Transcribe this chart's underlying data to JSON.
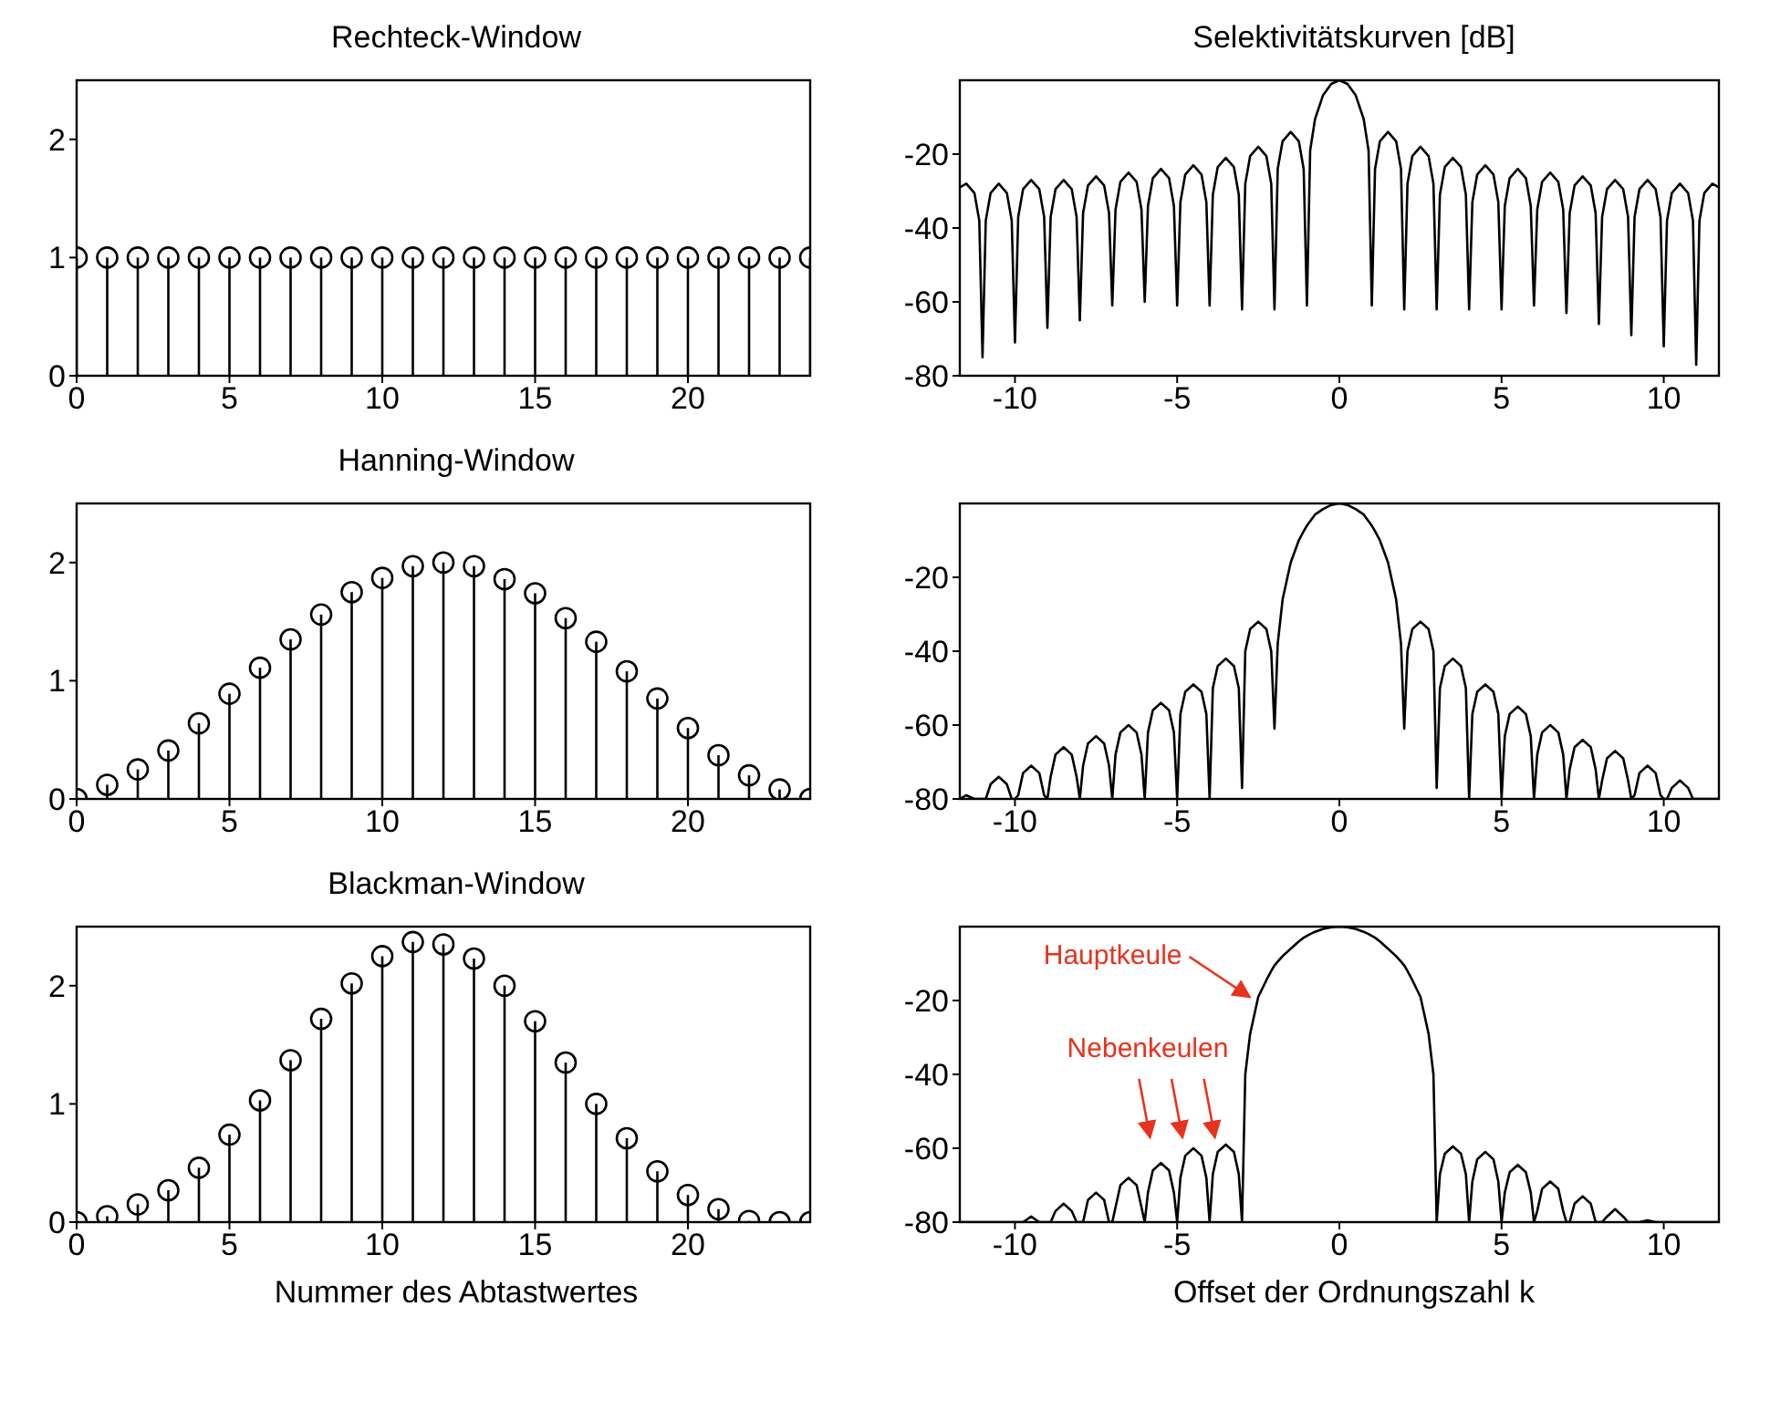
{
  "chart_data": [
    {
      "type": "lollipop",
      "title": "Rechteck-Window",
      "x": [
        0,
        1,
        2,
        3,
        4,
        5,
        6,
        7,
        8,
        9,
        10,
        11,
        12,
        13,
        14,
        15,
        16,
        17,
        18,
        19,
        20,
        21,
        22,
        23,
        24
      ],
      "values": [
        1,
        1,
        1,
        1,
        1,
        1,
        1,
        1,
        1,
        1,
        1,
        1,
        1,
        1,
        1,
        1,
        1,
        1,
        1,
        1,
        1,
        1,
        1,
        1,
        1
      ],
      "color": "#000000",
      "marker": "circle",
      "xlim": [
        0,
        24
      ],
      "ylim": [
        0,
        2.5
      ],
      "xticks": [
        0,
        5,
        10,
        15,
        20
      ],
      "yticks": [
        0,
        1,
        2
      ]
    },
    {
      "type": "line",
      "title": "Selektivitätskurven [dB]",
      "x": [
        -11.7,
        -11.5,
        -11.25,
        -11.1,
        -11,
        -10.9,
        -10.75,
        -10.5,
        -10.25,
        -10.1,
        -10,
        -9.9,
        -9.75,
        -9.5,
        -9.25,
        -9.1,
        -9,
        -8.9,
        -8.75,
        -8.5,
        -8.25,
        -8.1,
        -8,
        -7.9,
        -7.75,
        -7.5,
        -7.25,
        -7.1,
        -7,
        -6.9,
        -6.75,
        -6.5,
        -6.25,
        -6.1,
        -6,
        -5.9,
        -5.75,
        -5.5,
        -5.25,
        -5.1,
        -5,
        -4.9,
        -4.75,
        -4.5,
        -4.25,
        -4.1,
        -4,
        -3.9,
        -3.75,
        -3.5,
        -3.25,
        -3.1,
        -3,
        -2.9,
        -2.75,
        -2.5,
        -2.25,
        -2.1,
        -2,
        -1.9,
        -1.75,
        -1.5,
        -1.25,
        -1.1,
        -1,
        -0.9,
        -0.75,
        -0.5,
        -0.25,
        0,
        0.25,
        0.5,
        0.75,
        0.9,
        1,
        1.1,
        1.25,
        1.5,
        1.75,
        1.9,
        2,
        2.1,
        2.25,
        2.5,
        2.75,
        2.9,
        3,
        3.1,
        3.25,
        3.5,
        3.75,
        3.9,
        4,
        4.1,
        4.25,
        4.5,
        4.75,
        4.9,
        5,
        5.1,
        5.25,
        5.5,
        5.75,
        5.9,
        6,
        6.1,
        6.25,
        6.5,
        6.75,
        6.9,
        7,
        7.1,
        7.25,
        7.5,
        7.75,
        7.9,
        8,
        8.1,
        8.25,
        8.5,
        8.75,
        8.9,
        9,
        9.1,
        9.25,
        9.5,
        9.75,
        9.9,
        10,
        10.1,
        10.25,
        10.5,
        10.75,
        10.9,
        11,
        11.1,
        11.25,
        11.5,
        11.7
      ],
      "values": [
        -29,
        -28,
        -30.5,
        -38,
        -75,
        -38,
        -30.5,
        -28,
        -30.5,
        -38,
        -71,
        -37,
        -29.5,
        -27,
        -29.5,
        -37,
        -67,
        -37,
        -29.5,
        -27,
        -29.5,
        -37,
        -65,
        -36,
        -28.5,
        -26,
        -28.5,
        -36,
        -61,
        -35,
        -27.5,
        -25,
        -27.5,
        -35,
        -60,
        -34,
        -26.5,
        -24,
        -26.5,
        -34,
        -61,
        -33,
        -25.5,
        -23,
        -25.5,
        -33,
        -61,
        -31,
        -23.5,
        -21,
        -23.5,
        -31,
        -62,
        -28,
        -20.5,
        -18,
        -20.5,
        -28,
        -62,
        -24,
        -16.5,
        -14,
        -16.5,
        -24,
        -61,
        -19,
        -10.5,
        -4,
        -1,
        0,
        -1,
        -4,
        -10.5,
        -19,
        -61,
        -24,
        -16.5,
        -14,
        -16.5,
        -24,
        -62,
        -28,
        -20.5,
        -18,
        -20.5,
        -28,
        -62,
        -31,
        -23.5,
        -21,
        -23.5,
        -31,
        -62,
        -33,
        -25.5,
        -23,
        -25.5,
        -33,
        -62,
        -34,
        -26.5,
        -24,
        -26.5,
        -34,
        -61,
        -35,
        -27.5,
        -25,
        -27.5,
        -35,
        -63,
        -36,
        -28.5,
        -26,
        -28.5,
        -36,
        -66,
        -37,
        -29.5,
        -27,
        -29.5,
        -37,
        -69,
        -37,
        -29.5,
        -27,
        -29.5,
        -37,
        -72,
        -38,
        -30.5,
        -28,
        -30.5,
        -38,
        -77,
        -38,
        -30.5,
        -28,
        -29
      ],
      "color": "#000000",
      "xlim": [
        -11.7,
        11.7
      ],
      "ylim": [
        -80,
        0
      ],
      "xticks": [
        -10,
        -5,
        0,
        5,
        10
      ],
      "yticks": [
        -20,
        -40,
        -60,
        -80
      ]
    },
    {
      "type": "lollipop",
      "title": "Hanning-Window",
      "x": [
        0,
        1,
        2,
        3,
        4,
        5,
        6,
        7,
        8,
        9,
        10,
        11,
        12,
        13,
        14,
        15,
        16,
        17,
        18,
        19,
        20,
        21,
        22,
        23,
        24
      ],
      "values": [
        0,
        0.12,
        0.25,
        0.41,
        0.64,
        0.89,
        1.11,
        1.35,
        1.56,
        1.75,
        1.87,
        1.97,
        2,
        1.97,
        1.86,
        1.74,
        1.53,
        1.33,
        1.08,
        0.85,
        0.6,
        0.37,
        0.2,
        0.08,
        0
      ],
      "color": "#000000",
      "marker": "circle",
      "xlim": [
        0,
        24
      ],
      "ylim": [
        0,
        2.5
      ],
      "xticks": [
        0,
        5,
        10,
        15,
        20
      ],
      "yticks": [
        0,
        1,
        2
      ]
    },
    {
      "type": "line",
      "x": [
        -11.7,
        -11.5,
        -11.25,
        -11.1,
        -11,
        -10.9,
        -10.75,
        -10.5,
        -10.25,
        -10.1,
        -10,
        -9.9,
        -9.75,
        -9.5,
        -9.25,
        -9.1,
        -9,
        -8.9,
        -8.75,
        -8.5,
        -8.25,
        -8.1,
        -8,
        -7.9,
        -7.75,
        -7.5,
        -7.25,
        -7.1,
        -7,
        -6.9,
        -6.75,
        -6.5,
        -6.25,
        -6.1,
        -6,
        -5.9,
        -5.75,
        -5.5,
        -5.25,
        -5.1,
        -5,
        -4.9,
        -4.75,
        -4.5,
        -4.25,
        -4.1,
        -4,
        -3.9,
        -3.75,
        -3.5,
        -3.25,
        -3.1,
        -3,
        -2.9,
        -2.75,
        -2.5,
        -2.25,
        -2.1,
        -2,
        -1.9,
        -1.75,
        -1.5,
        -1.25,
        -1.1,
        -1,
        -0.9,
        -0.75,
        -0.5,
        -0.25,
        0,
        0.25,
        0.5,
        0.75,
        0.9,
        1,
        1.1,
        1.25,
        1.5,
        1.75,
        1.9,
        2,
        2.1,
        2.25,
        2.5,
        2.75,
        2.9,
        3,
        3.1,
        3.25,
        3.5,
        3.75,
        3.9,
        4,
        4.1,
        4.25,
        4.5,
        4.75,
        4.9,
        5,
        5.1,
        5.25,
        5.5,
        5.75,
        5.9,
        6,
        6.1,
        6.25,
        6.5,
        6.75,
        6.9,
        7,
        7.1,
        7.25,
        7.5,
        7.75,
        7.9,
        8,
        8.1,
        8.25,
        8.5,
        8.75,
        8.9,
        9,
        9.1,
        9.25,
        9.5,
        9.75,
        9.9,
        10,
        10.1,
        10.25,
        10.5,
        10.75,
        10.9,
        11,
        11.1,
        11.25,
        11.5,
        11.7
      ],
      "values": [
        -80,
        -79,
        -80,
        -80,
        -80,
        -80,
        -76,
        -74,
        -76,
        -80,
        -80,
        -79,
        -73,
        -71,
        -73,
        -79,
        -80,
        -74,
        -68,
        -66,
        -68,
        -74,
        -80,
        -71,
        -65,
        -63,
        -65,
        -71,
        -80,
        -68,
        -62,
        -60,
        -62,
        -68,
        -80,
        -62,
        -56,
        -54,
        -56,
        -62,
        -80,
        -57,
        -51,
        -49,
        -51,
        -57,
        -80,
        -50,
        -44,
        -42,
        -44,
        -50,
        -77,
        -40,
        -34,
        -32,
        -34,
        -40,
        -61,
        -38,
        -26,
        -16,
        -10,
        -7.5,
        -6,
        -4.8,
        -3,
        -1.5,
        -0.4,
        0,
        -0.4,
        -1.5,
        -3,
        -4.8,
        -6,
        -7.5,
        -10,
        -16,
        -26,
        -38,
        -61,
        -40,
        -34,
        -32,
        -34,
        -40,
        -77,
        -50,
        -44,
        -42,
        -44,
        -50,
        -80,
        -57,
        -51,
        -49,
        -51,
        -57,
        -80,
        -63,
        -57,
        -55,
        -57,
        -63,
        -80,
        -68,
        -62,
        -60,
        -62,
        -68,
        -80,
        -72,
        -66,
        -64,
        -66,
        -72,
        -80,
        -75,
        -69,
        -67,
        -69,
        -75,
        -80,
        -79,
        -73,
        -71,
        -73,
        -79,
        -80,
        -80,
        -77,
        -75,
        -77,
        -80,
        -80,
        -80,
        -80,
        -80,
        -80
      ],
      "color": "#000000",
      "xlim": [
        -11.7,
        11.7
      ],
      "ylim": [
        -80,
        0
      ],
      "xticks": [
        -10,
        -5,
        0,
        5,
        10
      ],
      "yticks": [
        -20,
        -40,
        -60,
        -80
      ]
    },
    {
      "type": "lollipop",
      "title": "Blackman-Window",
      "xlabel": "Nummer des Abtastwertes",
      "x": [
        0,
        1,
        2,
        3,
        4,
        5,
        6,
        7,
        8,
        9,
        10,
        11,
        12,
        13,
        14,
        15,
        16,
        17,
        18,
        19,
        20,
        21,
        22,
        23,
        24
      ],
      "values": [
        0,
        0.05,
        0.15,
        0.27,
        0.46,
        0.74,
        1.03,
        1.37,
        1.72,
        2.02,
        2.25,
        2.37,
        2.35,
        2.23,
        2,
        1.7,
        1.35,
        1,
        0.71,
        0.43,
        0.23,
        0.11,
        0.01,
        0,
        0
      ],
      "color": "#000000",
      "marker": "circle",
      "xlim": [
        0,
        24
      ],
      "ylim": [
        0,
        2.5
      ],
      "xticks": [
        0,
        5,
        10,
        15,
        20
      ],
      "yticks": [
        0,
        1,
        2
      ]
    },
    {
      "type": "line",
      "xlabel": "Offset der Ordnungszahl k",
      "x": [
        -11.7,
        -11.5,
        -11.25,
        -11.1,
        -11,
        -10.9,
        -10.75,
        -10.5,
        -10.25,
        -10.1,
        -10,
        -9.9,
        -9.75,
        -9.5,
        -9.25,
        -9.1,
        -9,
        -8.9,
        -8.75,
        -8.5,
        -8.25,
        -8.1,
        -8,
        -7.9,
        -7.75,
        -7.5,
        -7.25,
        -7.1,
        -7,
        -6.9,
        -6.75,
        -6.5,
        -6.25,
        -6.1,
        -6,
        -5.9,
        -5.75,
        -5.5,
        -5.25,
        -5.1,
        -5,
        -4.9,
        -4.75,
        -4.5,
        -4.25,
        -4.1,
        -4,
        -3.9,
        -3.75,
        -3.5,
        -3.25,
        -3.1,
        -3,
        -2.9,
        -2.75,
        -2.5,
        -2.25,
        -2.1,
        -2,
        -1.9,
        -1.75,
        -1.5,
        -1.25,
        -1.1,
        -1,
        -0.9,
        -0.75,
        -0.5,
        -0.25,
        0,
        0.25,
        0.5,
        0.75,
        0.9,
        1,
        1.1,
        1.25,
        1.5,
        1.75,
        1.9,
        2,
        2.1,
        2.25,
        2.5,
        2.75,
        2.9,
        3,
        3.1,
        3.25,
        3.5,
        3.75,
        3.9,
        4,
        4.1,
        4.25,
        4.5,
        4.75,
        4.9,
        5,
        5.1,
        5.25,
        5.5,
        5.75,
        5.9,
        6,
        6.1,
        6.25,
        6.5,
        6.75,
        6.9,
        7,
        7.1,
        7.25,
        7.5,
        7.75,
        7.9,
        8,
        8.1,
        8.25,
        8.5,
        8.75,
        8.9,
        9,
        9.1,
        9.25,
        9.5,
        9.75,
        9.9,
        10,
        10.1,
        10.25,
        10.5,
        10.75,
        10.9,
        11,
        11.1,
        11.25,
        11.5,
        11.7
      ],
      "values": [
        -80,
        -80,
        -80,
        -80,
        -80,
        -80,
        -80,
        -80,
        -80,
        -80,
        -80,
        -80,
        -80,
        -78.5,
        -80,
        -80,
        -80,
        -80,
        -77,
        -75,
        -77,
        -80,
        -80,
        -80,
        -74,
        -72,
        -74,
        -80,
        -80,
        -76,
        -70,
        -68,
        -70,
        -76,
        -80,
        -72,
        -66,
        -64,
        -66,
        -72,
        -80,
        -68,
        -62,
        -60,
        -62,
        -68,
        -80,
        -67,
        -61,
        -59,
        -61,
        -67,
        -80,
        -40,
        -29,
        -19,
        -14.5,
        -12,
        -10.5,
        -9.5,
        -8,
        -6,
        -4,
        -3,
        -2.5,
        -2,
        -1.4,
        -0.6,
        -0.2,
        0,
        -0.2,
        -0.6,
        -1.4,
        -2,
        -2.5,
        -3,
        -4,
        -6,
        -8,
        -9.5,
        -10.5,
        -12,
        -14.5,
        -19,
        -29,
        -40,
        -80,
        -67,
        -61.5,
        -59.5,
        -61.5,
        -67,
        -80,
        -69,
        -63,
        -61,
        -63,
        -69,
        -80,
        -72,
        -66.5,
        -64.5,
        -66.5,
        -72,
        -80,
        -77,
        -71,
        -69,
        -71,
        -77,
        -80,
        -80,
        -75,
        -73,
        -75,
        -80,
        -80,
        -80,
        -78.5,
        -76.5,
        -78.5,
        -80,
        -80,
        -80,
        -80,
        -79.5,
        -80,
        -80,
        -80,
        -80,
        -80,
        -80,
        -80,
        -80,
        -80,
        -80,
        -80,
        -80,
        -80
      ],
      "color": "#000000",
      "xlim": [
        -11.7,
        11.7
      ],
      "ylim": [
        -80,
        0
      ],
      "xticks": [
        -10,
        -5,
        0,
        5,
        10
      ],
      "yticks": [
        -20,
        -40,
        -60,
        -80
      ],
      "annotations": [
        {
          "text": "Hauptkeule",
          "x": -2.6,
          "y": -20
        },
        {
          "text": "Nebenkeulen",
          "x": -4.5,
          "y": -60
        }
      ]
    }
  ]
}
